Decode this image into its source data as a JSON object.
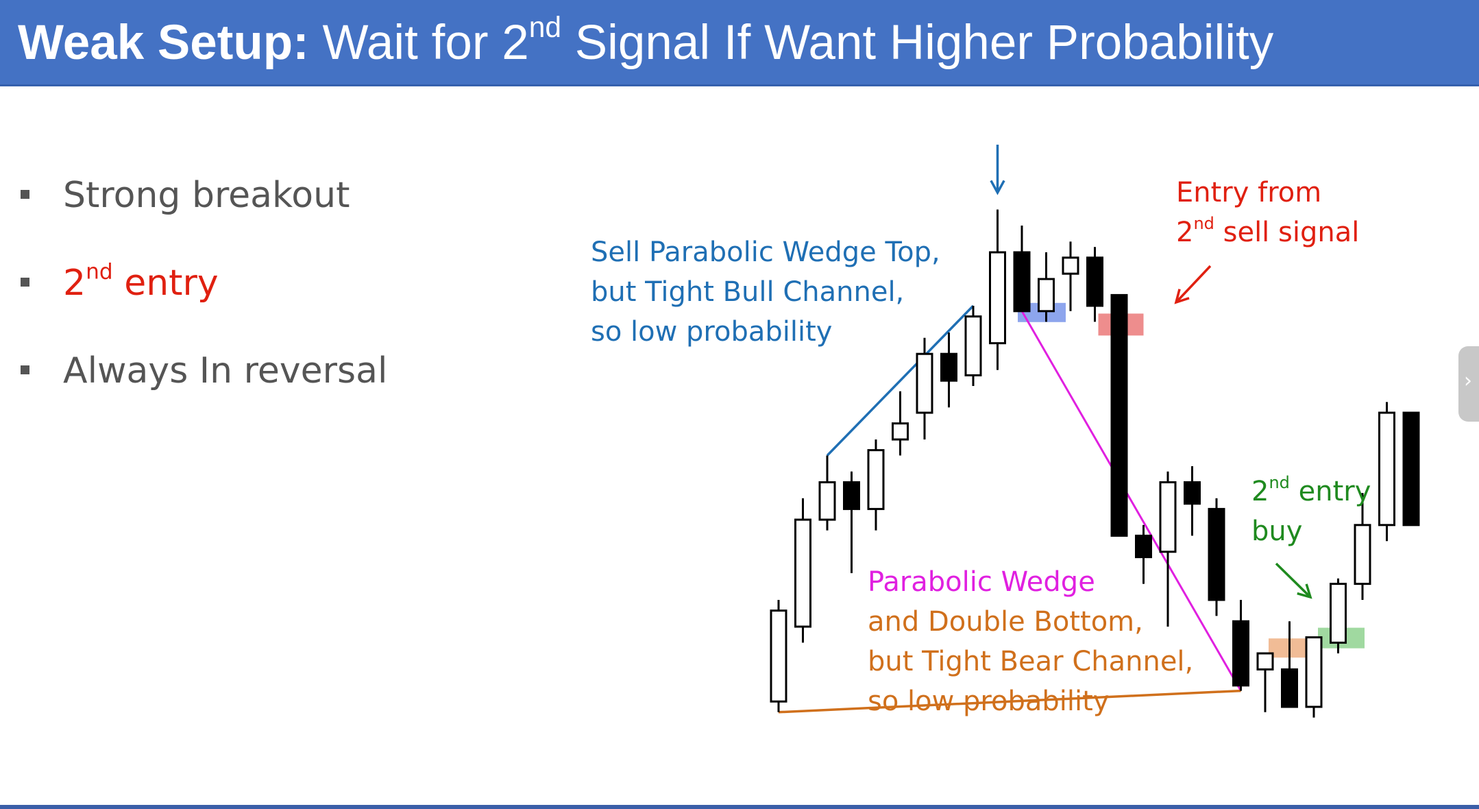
{
  "slide": {
    "title_bold": "Weak Setup:",
    "title_rest_pre": " Wait for 2",
    "title_sup": "nd",
    "title_rest_post": " Signal If Want Higher Probability"
  },
  "bullets": [
    {
      "pre": "Strong breakout",
      "sup": "",
      "post": "",
      "color": "#555555"
    },
    {
      "pre": "2",
      "sup": "nd",
      "post": " entry",
      "color": "#e02010"
    },
    {
      "pre": "Always In reversal",
      "sup": "",
      "post": "",
      "color": "#555555"
    }
  ],
  "annotations": {
    "sell_wedge": {
      "lines": [
        "Sell Parabolic Wedge Top,",
        "but Tight Bull Channel,",
        "so low probability"
      ],
      "color": "#1f6fb4"
    },
    "entry_second_sell": {
      "line1": "Entry from",
      "line2_pre": "2",
      "line2_sup": "nd",
      "line2_post": " sell signal",
      "color": "#e02010"
    },
    "second_entry_buy": {
      "line1_pre": "2",
      "line1_sup": "nd",
      "line1_post": " entry",
      "line2": "buy",
      "color": "#1f8a1f"
    },
    "wedge_bottom": {
      "line1": "Parabolic Wedge",
      "line1_color": "#e020e0",
      "lines_rest": [
        "and Double Bottom,",
        "but Tight Bear Channel,",
        "so low probability"
      ],
      "rest_color": "#d0701c"
    }
  },
  "chart_data": {
    "type": "candlestick",
    "title": "",
    "xlabel": "",
    "ylabel": "",
    "ylim": [
      0,
      100
    ],
    "candles": [
      {
        "o": 6,
        "h": 25,
        "l": 4,
        "c": 23
      },
      {
        "o": 20,
        "h": 44,
        "l": 17,
        "c": 40
      },
      {
        "o": 40,
        "h": 52,
        "l": 38,
        "c": 47
      },
      {
        "o": 47,
        "h": 49,
        "l": 30,
        "c": 42
      },
      {
        "o": 42,
        "h": 55,
        "l": 38,
        "c": 53
      },
      {
        "o": 55,
        "h": 64,
        "l": 52,
        "c": 58
      },
      {
        "o": 60,
        "h": 74,
        "l": 55,
        "c": 71
      },
      {
        "o": 71,
        "h": 75,
        "l": 61,
        "c": 66
      },
      {
        "o": 67,
        "h": 80,
        "l": 65,
        "c": 78
      },
      {
        "o": 73,
        "h": 98,
        "l": 68,
        "c": 90
      },
      {
        "o": 90,
        "h": 95,
        "l": 79,
        "c": 79
      },
      {
        "o": 79,
        "h": 90,
        "l": 77,
        "c": 85
      },
      {
        "o": 86,
        "h": 92,
        "l": 79,
        "c": 89
      },
      {
        "o": 89,
        "h": 91,
        "l": 77,
        "c": 80
      },
      {
        "o": 82,
        "h": 82,
        "l": 37,
        "c": 37
      },
      {
        "o": 37,
        "h": 39,
        "l": 28,
        "c": 33
      },
      {
        "o": 34,
        "h": 49,
        "l": 20,
        "c": 47
      },
      {
        "o": 47,
        "h": 50,
        "l": 37,
        "c": 43
      },
      {
        "o": 42,
        "h": 44,
        "l": 22,
        "c": 25
      },
      {
        "o": 21,
        "h": 25,
        "l": 8,
        "c": 9
      },
      {
        "o": 12,
        "h": 15,
        "l": 4,
        "c": 15
      },
      {
        "o": 12,
        "h": 21,
        "l": 5,
        "c": 5
      },
      {
        "o": 5,
        "h": 17,
        "l": 3,
        "c": 18
      },
      {
        "o": 17,
        "h": 29,
        "l": 15,
        "c": 28
      },
      {
        "o": 28,
        "h": 45,
        "l": 25,
        "c": 39
      },
      {
        "o": 39,
        "h": 62,
        "l": 36,
        "c": 60
      },
      {
        "o": 60,
        "h": 60,
        "l": 39,
        "c": 39
      }
    ]
  }
}
